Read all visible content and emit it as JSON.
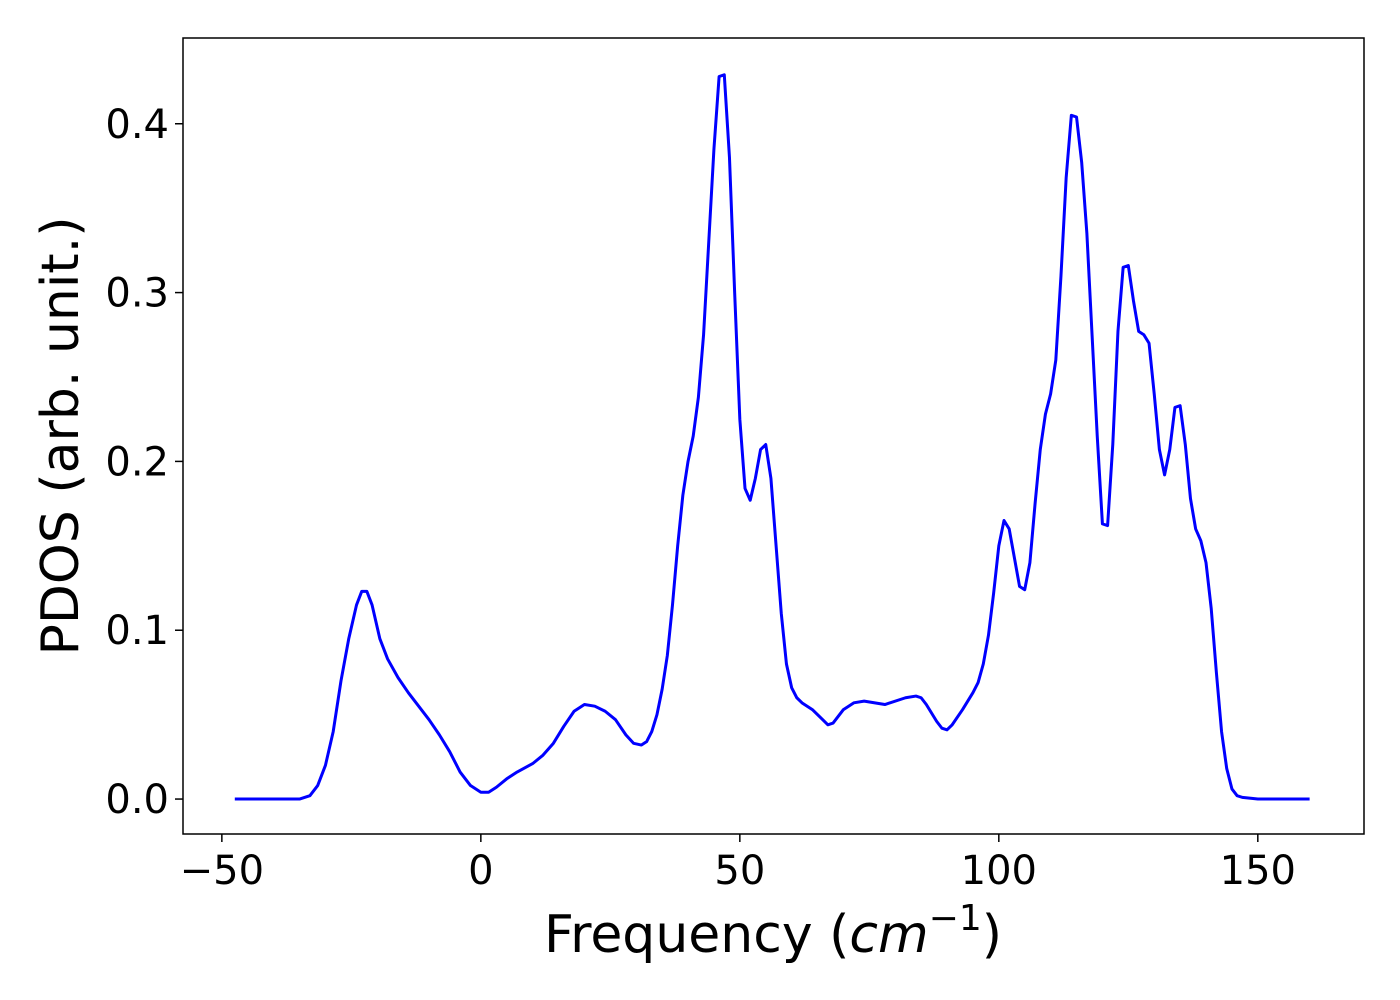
{
  "chart_data": {
    "type": "line",
    "ylabel": "PDOS (arb. unit.)",
    "xlabel": [
      "Frequency (",
      "cm",
      "−1",
      ")"
    ],
    "color": "#0000ff",
    "xlim": [
      -57.5,
      170.5
    ],
    "ylim": [
      -0.0207,
      0.4508
    ],
    "xticks": [
      {
        "value": -50,
        "label": "−50"
      },
      0,
      50,
      100,
      150
    ],
    "yticks": [
      {
        "value": 0,
        "label": "0.0"
      },
      0.1,
      0.2,
      0.3,
      0.4
    ],
    "x": [
      -47.5,
      -35,
      -33,
      -31.5,
      -30,
      -28.5,
      -27,
      -25.5,
      -24,
      -23,
      -22,
      -21,
      -19.5,
      -18,
      -16,
      -14,
      -12,
      -10,
      -8,
      -6,
      -4,
      -2,
      0,
      1.5,
      3,
      5,
      7,
      10,
      12,
      14,
      16,
      18,
      20,
      22,
      24,
      26,
      28,
      29.5,
      31,
      32,
      33,
      34,
      35,
      36,
      37,
      38,
      39,
      40,
      41,
      42,
      43,
      44,
      45,
      46,
      47,
      48,
      49,
      50,
      51,
      52,
      53,
      54,
      55,
      56,
      57,
      58,
      59,
      60,
      61,
      62,
      64,
      66,
      67,
      68,
      70,
      72,
      74,
      78,
      82,
      84,
      85,
      86,
      88,
      89,
      90,
      91,
      93,
      95,
      96,
      97,
      98,
      99,
      100,
      101,
      102,
      103,
      104,
      105,
      106,
      107,
      108,
      109,
      110,
      111,
      112,
      113,
      114,
      115,
      116,
      117,
      118,
      119,
      120,
      121,
      122,
      123,
      124,
      125,
      126,
      127,
      128,
      129,
      130,
      131,
      132,
      133,
      134,
      135,
      136,
      137,
      138,
      139,
      140,
      141,
      142,
      143,
      144,
      145,
      146,
      147,
      150,
      160
    ],
    "values": [
      0,
      0,
      0.002,
      0.008,
      0.02,
      0.04,
      0.07,
      0.095,
      0.115,
      0.123,
      0.123,
      0.115,
      0.095,
      0.083,
      0.072,
      0.063,
      0.055,
      0.047,
      0.038,
      0.028,
      0.016,
      0.008,
      0.004,
      0.004,
      0.007,
      0.012,
      0.016,
      0.021,
      0.026,
      0.033,
      0.043,
      0.052,
      0.056,
      0.055,
      0.052,
      0.047,
      0.038,
      0.033,
      0.032,
      0.034,
      0.04,
      0.05,
      0.065,
      0.085,
      0.115,
      0.15,
      0.18,
      0.2,
      0.215,
      0.238,
      0.275,
      0.33,
      0.385,
      0.428,
      0.429,
      0.38,
      0.3,
      0.225,
      0.184,
      0.177,
      0.19,
      0.207,
      0.21,
      0.19,
      0.15,
      0.11,
      0.08,
      0.066,
      0.06,
      0.057,
      0.053,
      0.047,
      0.044,
      0.045,
      0.053,
      0.057,
      0.058,
      0.056,
      0.06,
      0.061,
      0.06,
      0.056,
      0.046,
      0.042,
      0.041,
      0.044,
      0.053,
      0.063,
      0.069,
      0.08,
      0.097,
      0.122,
      0.15,
      0.165,
      0.16,
      0.143,
      0.126,
      0.124,
      0.14,
      0.175,
      0.207,
      0.228,
      0.24,
      0.26,
      0.31,
      0.368,
      0.405,
      0.404,
      0.377,
      0.335,
      0.275,
      0.215,
      0.163,
      0.162,
      0.21,
      0.277,
      0.315,
      0.316,
      0.295,
      0.277,
      0.275,
      0.27,
      0.24,
      0.207,
      0.192,
      0.207,
      0.232,
      0.233,
      0.21,
      0.178,
      0.16,
      0.153,
      0.14,
      0.113,
      0.075,
      0.04,
      0.018,
      0.006,
      0.002,
      0.001,
      0,
      0
    ]
  }
}
